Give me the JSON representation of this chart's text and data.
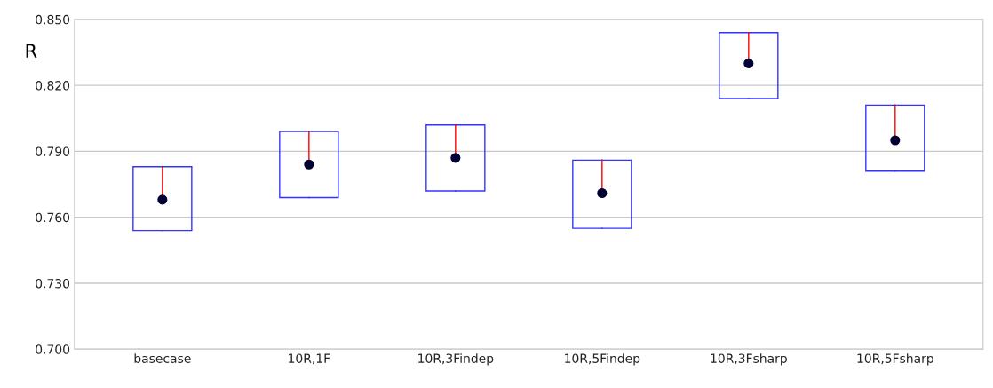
{
  "chart_data": {
    "type": "box",
    "ylabel": "R",
    "categories": [
      "basecase",
      "10R,1F",
      "10R,3Findep",
      "10R,5Findep",
      "10R,3Fsharp",
      "10R,5Fsharp"
    ],
    "series": [
      {
        "color": "#3333ff",
        "boxes": [
          {
            "low": 0.754,
            "q1": 0.754,
            "median": 0.768,
            "q3": 0.783,
            "high": 0.783
          },
          {
            "low": 0.769,
            "q1": 0.769,
            "median": 0.784,
            "q3": 0.799,
            "high": 0.799
          },
          {
            "low": 0.772,
            "q1": 0.772,
            "median": 0.787,
            "q3": 0.802,
            "high": 0.802
          },
          {
            "low": 0.755,
            "q1": 0.755,
            "median": 0.771,
            "q3": 0.786,
            "high": 0.786
          },
          {
            "low": 0.814,
            "q1": 0.814,
            "median": 0.83,
            "q3": 0.844,
            "high": 0.844
          },
          {
            "low": 0.781,
            "q1": 0.781,
            "median": 0.795,
            "q3": 0.811,
            "high": 0.811
          }
        ]
      }
    ],
    "ylim": [
      0.7,
      0.85
    ],
    "yticks": [
      {
        "value": 0.7,
        "label": "0.700"
      },
      {
        "value": 0.73,
        "label": "0.730"
      },
      {
        "value": 0.76,
        "label": "0.760"
      },
      {
        "value": 0.79,
        "label": "0.790"
      },
      {
        "value": 0.82,
        "label": "0.820"
      },
      {
        "value": 0.85,
        "label": "0.850"
      }
    ],
    "grid": "y",
    "legend": false
  }
}
